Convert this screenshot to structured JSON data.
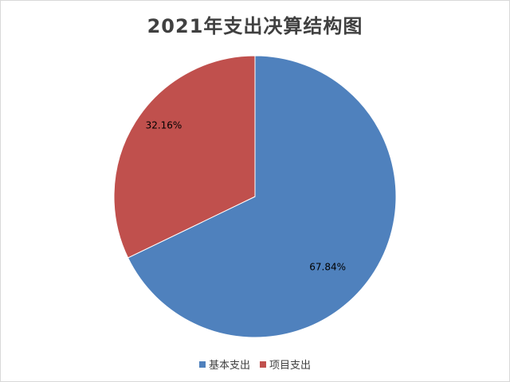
{
  "chart_data": {
    "type": "pie",
    "title": "2021年支出决算结构图",
    "categories": [
      "基本支出",
      "项目支出"
    ],
    "values": [
      67.84,
      32.16
    ],
    "labels": [
      "67.84%",
      "32.16%"
    ],
    "colors": [
      "#4f81bd",
      "#c0504d"
    ],
    "start_angle": "12 o'clock",
    "direction": "clockwise",
    "legend": "bottom"
  }
}
